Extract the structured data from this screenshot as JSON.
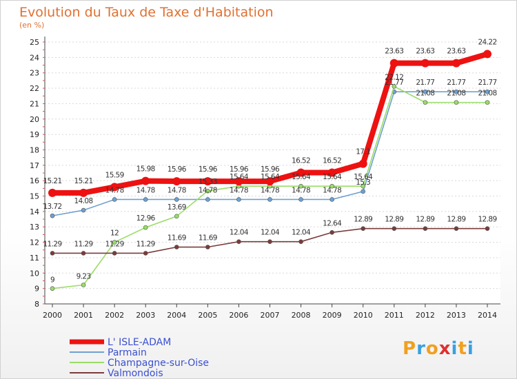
{
  "header": {
    "title": "Evolution du Taux de Taxe d'Habitation",
    "subtitle": "(en %)"
  },
  "logo": {
    "text": "Proxiti"
  },
  "chart_data": {
    "type": "line",
    "title": "Evolution du Taux de Taxe d'Habitation",
    "ylabel": "(en %)",
    "xlabel": "",
    "ylim": [
      8,
      25
    ],
    "y_ticks": [
      "8",
      "9",
      "10",
      "11",
      "12",
      "13",
      "14",
      "15",
      "16",
      "17",
      "18",
      "19",
      "20",
      "21",
      "22",
      "23",
      "24",
      "25"
    ],
    "x": [
      "2000",
      "2001",
      "2002",
      "2003",
      "2004",
      "2005",
      "2006",
      "2007",
      "2008",
      "2009",
      "2010",
      "2011",
      "2012",
      "2013",
      "2014"
    ],
    "legend_position": "bottom-left",
    "grid": "horizontal-dashed",
    "series": [
      {
        "name": "L' ISLE-ADAM",
        "color": "#ee1111",
        "values": [
          15.21,
          15.21,
          15.59,
          15.98,
          15.96,
          15.96,
          15.96,
          15.96,
          16.52,
          16.52,
          17.1,
          23.63,
          23.63,
          23.63,
          24.22
        ],
        "labels": [
          "15.21",
          "15.21",
          "15.59",
          "15.98",
          "15.96",
          "15.96",
          "15.96",
          "15.96",
          "16.52",
          "16.52",
          "17.1",
          "23.63",
          "23.63",
          "23.63",
          "24.22"
        ]
      },
      {
        "name": "Parmain",
        "color": "#6fa0cf",
        "values": [
          13.72,
          14.08,
          14.78,
          14.78,
          14.78,
          14.78,
          14.78,
          14.78,
          14.78,
          14.78,
          15.3,
          21.77,
          21.77,
          21.77,
          21.77
        ],
        "labels": [
          "13.72",
          "14.08",
          "14.78",
          "14.78",
          "14.78",
          "14.78",
          "14.78",
          "14.78",
          "14.78",
          "14.78",
          "15.3",
          "21.77",
          "21.77",
          "21.77",
          "21.77"
        ]
      },
      {
        "name": "Champagne-sur-Oise",
        "color": "#99dd66",
        "values": [
          9,
          9.23,
          12,
          12.96,
          13.69,
          15.33,
          15.64,
          15.64,
          15.64,
          15.64,
          15.64,
          22.12,
          21.08,
          21.08,
          21.08
        ],
        "labels": [
          "9",
          "9.23",
          "12",
          "12.96",
          "13.69",
          "15.33",
          "15.64",
          "15.64",
          "15.64",
          "15.64",
          "15.64",
          "22.12",
          "21.08",
          "21.08",
          "21.08"
        ]
      },
      {
        "name": "Valmondois",
        "color": "#7a3b3b",
        "values": [
          11.29,
          11.29,
          11.29,
          11.29,
          11.69,
          11.69,
          12.04,
          12.04,
          12.04,
          12.64,
          12.89,
          12.89,
          12.89,
          12.89,
          12.89
        ],
        "labels": [
          "11.29",
          "11.29",
          "11.29",
          "11.29",
          "11.69",
          "11.69",
          "12.04",
          "12.04",
          "12.04",
          "12.64",
          "12.89",
          "12.89",
          "12.89",
          "12.89",
          "12.89"
        ]
      }
    ]
  }
}
